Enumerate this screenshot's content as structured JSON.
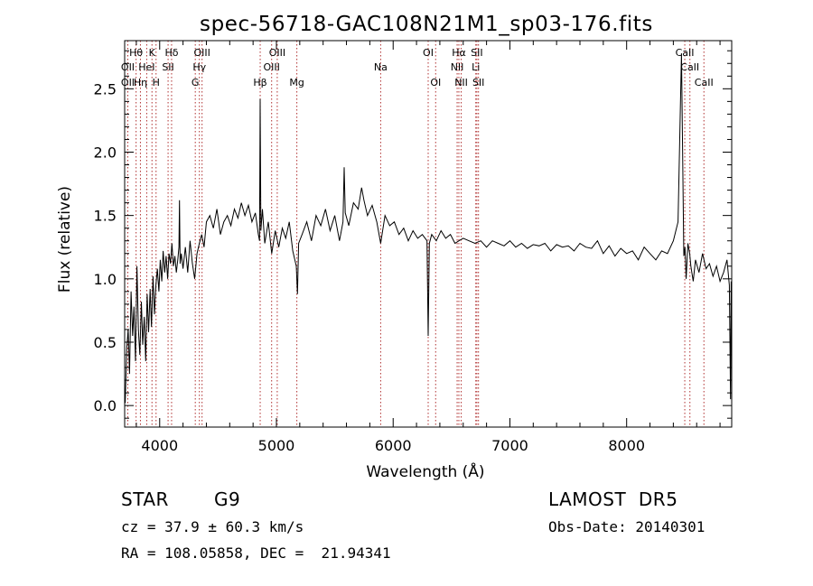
{
  "chart_data": {
    "type": "line",
    "title": "spec-56718-GAC108N21M1_sp03-176.fits",
    "xlabel": "Wavelength (Å)",
    "ylabel": "Flux (relative)",
    "xlim": [
      3700,
      8900
    ],
    "ylim": [
      -0.17,
      2.88
    ],
    "xticks": [
      4000,
      5000,
      6000,
      7000,
      8000
    ],
    "yticks": [
      0.0,
      0.5,
      1.0,
      1.5,
      2.0,
      2.5
    ],
    "xtick_labels": [
      "4000",
      "5000",
      "6000",
      "7000",
      "8000"
    ],
    "ytick_labels": [
      "0.0",
      "0.5",
      "1.0",
      "1.5",
      "2.0",
      "2.5"
    ],
    "grid": false,
    "colors": {
      "spectrum": "#000000",
      "lines": "#b03030"
    },
    "line_markers": [
      {
        "label": "Hθ",
        "wave": 3798,
        "row": 0
      },
      {
        "label": "K",
        "wave": 3934,
        "row": 0
      },
      {
        "label": "Hδ",
        "wave": 4102,
        "row": 0
      },
      {
        "label": "OIII",
        "wave": 4363,
        "row": 0
      },
      {
        "label": "OIII",
        "wave": 5007,
        "row": 0
      },
      {
        "label": "OI",
        "wave": 6300,
        "row": 0
      },
      {
        "label": "Hα",
        "wave": 6563,
        "row": 0
      },
      {
        "label": "SII",
        "wave": 6717,
        "row": 0
      },
      {
        "label": "CaII",
        "wave": 8498,
        "row": 0
      },
      {
        "label": "OII",
        "wave": 3727,
        "row": 1
      },
      {
        "label": "HeI",
        "wave": 3889,
        "row": 1
      },
      {
        "label": "SII",
        "wave": 4072,
        "row": 1
      },
      {
        "label": "Hγ",
        "wave": 4340,
        "row": 1
      },
      {
        "label": "OIII",
        "wave": 4959,
        "row": 1
      },
      {
        "label": "Na",
        "wave": 5893,
        "row": 1
      },
      {
        "label": "NII",
        "wave": 6548,
        "row": 1
      },
      {
        "label": "Li",
        "wave": 6708,
        "row": 1
      },
      {
        "label": "CaII",
        "wave": 8542,
        "row": 1
      },
      {
        "label": "OII",
        "wave": 3727,
        "row": 2
      },
      {
        "label": "Hη",
        "wave": 3835,
        "row": 2
      },
      {
        "label": "H",
        "wave": 3969,
        "row": 2
      },
      {
        "label": "G",
        "wave": 4305,
        "row": 2
      },
      {
        "label": "Hβ",
        "wave": 4861,
        "row": 2
      },
      {
        "label": "Mg",
        "wave": 5175,
        "row": 2
      },
      {
        "label": "OI",
        "wave": 6364,
        "row": 2
      },
      {
        "label": "NII",
        "wave": 6583,
        "row": 2
      },
      {
        "label": "SII",
        "wave": 6731,
        "row": 2
      },
      {
        "label": "CaII",
        "wave": 8662,
        "row": 2
      }
    ],
    "series": [
      {
        "x": [
          3705,
          3718,
          3730,
          3742,
          3755,
          3768,
          3780,
          3793,
          3805,
          3818,
          3830,
          3843,
          3855,
          3868,
          3880,
          3893,
          3905,
          3918,
          3930,
          3943,
          3955,
          3968,
          3980,
          3993,
          4005,
          4018,
          4030,
          4043,
          4055,
          4068,
          4080,
          4093,
          4105,
          4118,
          4130,
          4143,
          4155,
          4165,
          4170,
          4175,
          4185,
          4200,
          4220,
          4240,
          4260,
          4280,
          4300,
          4320,
          4340,
          4360,
          4380,
          4400,
          4430,
          4460,
          4490,
          4520,
          4550,
          4580,
          4610,
          4640,
          4670,
          4700,
          4730,
          4760,
          4790,
          4820,
          4845,
          4855,
          4861,
          4867,
          4880,
          4900,
          4930,
          4960,
          4990,
          5020,
          5050,
          5080,
          5110,
          5140,
          5170,
          5180,
          5190,
          5220,
          5260,
          5300,
          5340,
          5380,
          5420,
          5460,
          5500,
          5540,
          5570,
          5580,
          5590,
          5620,
          5660,
          5700,
          5730,
          5750,
          5780,
          5820,
          5860,
          5893,
          5930,
          5970,
          6010,
          6050,
          6090,
          6130,
          6170,
          6210,
          6250,
          6290,
          6300,
          6310,
          6330,
          6370,
          6410,
          6450,
          6490,
          6530,
          6563,
          6600,
          6650,
          6700,
          6750,
          6800,
          6850,
          6900,
          6950,
          7000,
          7050,
          7100,
          7150,
          7200,
          7250,
          7300,
          7350,
          7400,
          7450,
          7500,
          7550,
          7600,
          7650,
          7700,
          7750,
          7800,
          7850,
          7900,
          7950,
          8000,
          8050,
          8100,
          8150,
          8200,
          8250,
          8300,
          8350,
          8400,
          8440,
          8470,
          8490,
          8500,
          8510,
          8525,
          8540,
          8550,
          8570,
          8590,
          8620,
          8650,
          8680,
          8710,
          8740,
          8770,
          8800,
          8830,
          8860,
          8880,
          8890,
          8895
        ],
        "y": [
          0.02,
          0.45,
          0.6,
          0.25,
          0.9,
          0.55,
          0.78,
          0.35,
          1.1,
          0.6,
          0.4,
          0.82,
          0.48,
          0.7,
          0.35,
          0.88,
          0.58,
          0.92,
          0.62,
          1.02,
          0.72,
          0.95,
          1.08,
          0.9,
          1.15,
          0.98,
          1.22,
          1.05,
          1.18,
          1.0,
          1.2,
          1.12,
          1.28,
          1.1,
          1.18,
          1.05,
          1.15,
          1.25,
          1.62,
          1.12,
          1.2,
          1.08,
          1.25,
          1.05,
          1.3,
          1.12,
          1.0,
          1.2,
          1.28,
          1.35,
          1.25,
          1.45,
          1.5,
          1.4,
          1.55,
          1.35,
          1.45,
          1.5,
          1.42,
          1.55,
          1.48,
          1.6,
          1.5,
          1.58,
          1.45,
          1.52,
          1.35,
          1.3,
          2.42,
          1.38,
          1.55,
          1.28,
          1.45,
          1.2,
          1.38,
          1.25,
          1.4,
          1.32,
          1.45,
          1.22,
          1.1,
          0.88,
          1.28,
          1.35,
          1.45,
          1.3,
          1.5,
          1.42,
          1.55,
          1.38,
          1.5,
          1.3,
          1.45,
          1.88,
          1.52,
          1.42,
          1.6,
          1.55,
          1.72,
          1.62,
          1.5,
          1.58,
          1.45,
          1.28,
          1.5,
          1.42,
          1.45,
          1.35,
          1.4,
          1.3,
          1.38,
          1.32,
          1.35,
          1.3,
          0.55,
          1.28,
          1.35,
          1.3,
          1.38,
          1.32,
          1.35,
          1.28,
          1.3,
          1.32,
          1.3,
          1.28,
          1.3,
          1.25,
          1.3,
          1.28,
          1.26,
          1.3,
          1.25,
          1.28,
          1.24,
          1.27,
          1.26,
          1.28,
          1.22,
          1.27,
          1.25,
          1.26,
          1.22,
          1.28,
          1.25,
          1.24,
          1.3,
          1.2,
          1.26,
          1.18,
          1.24,
          1.2,
          1.22,
          1.15,
          1.25,
          1.2,
          1.15,
          1.22,
          1.2,
          1.3,
          1.45,
          2.78,
          1.18,
          1.25,
          1.0,
          1.28,
          1.2,
          1.1,
          0.98,
          1.15,
          1.05,
          1.2,
          1.08,
          1.12,
          1.02,
          1.1,
          0.98,
          1.05,
          1.15,
          0.95,
          0.05,
          0.98
        ]
      }
    ]
  },
  "footer": {
    "object_class": "STAR",
    "subclass": "G9",
    "survey": "LAMOST  DR5",
    "redshift": "cz = 37.9 ± 60.3 km/s",
    "obs_date": "Obs-Date: 20140301",
    "coords": "RA = 108.05858, DEC =  21.94341"
  }
}
